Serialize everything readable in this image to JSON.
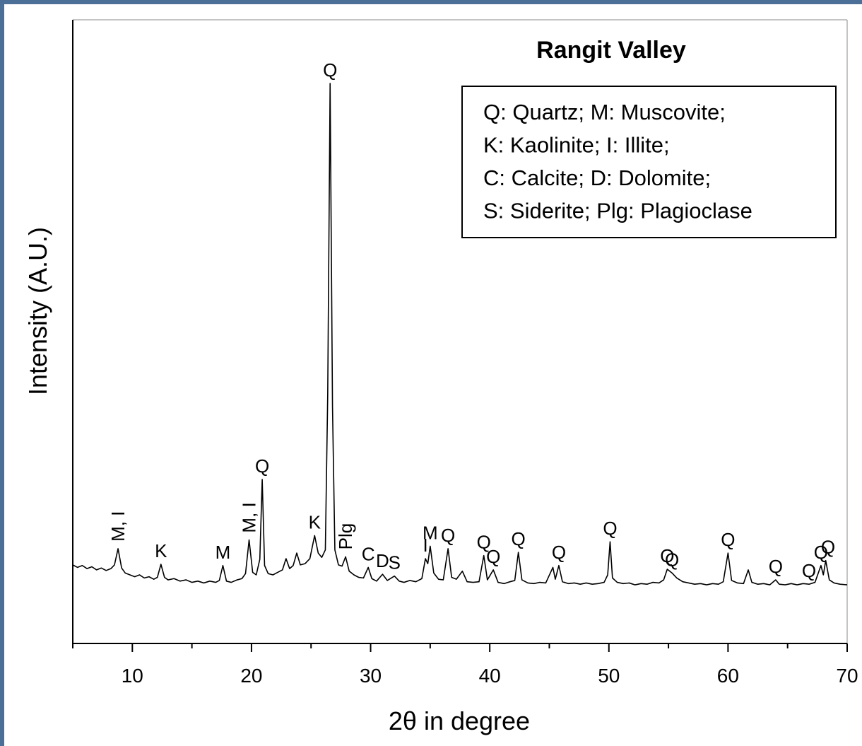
{
  "chart_data": {
    "type": "line",
    "title": "Rangit Valley",
    "x_label": "2θ in degree",
    "y_label": "Intensity (A.U.)",
    "xlim": [
      5,
      70
    ],
    "ylim": [
      0,
      100
    ],
    "xticks": [
      10,
      20,
      30,
      40,
      50,
      60,
      70
    ],
    "xminor_ticks": [
      5,
      15,
      25,
      35,
      45,
      55,
      65
    ],
    "legend_text": [
      "Q: Quartz; M: Muscovite;",
      "K: Kaolinite; I: Illite;",
      "C: Calcite; D: Dolomite;",
      "S: Siderite; Plg: Plagioclase"
    ],
    "x": [
      5.0,
      5.4,
      5.8,
      6.2,
      6.6,
      7.0,
      7.4,
      7.8,
      8.2,
      8.5,
      8.8,
      9.1,
      9.4,
      9.8,
      10.2,
      10.6,
      11.0,
      11.4,
      11.8,
      12.1,
      12.4,
      12.7,
      13.0,
      13.5,
      14.0,
      14.5,
      15.0,
      15.5,
      16.0,
      16.5,
      17.0,
      17.3,
      17.6,
      17.9,
      18.3,
      18.8,
      19.2,
      19.5,
      19.8,
      20.1,
      20.4,
      20.7,
      20.9,
      21.1,
      21.4,
      21.8,
      22.2,
      22.6,
      22.9,
      23.2,
      23.5,
      23.8,
      24.1,
      24.5,
      24.9,
      25.3,
      25.6,
      25.9,
      26.2,
      26.4,
      26.6,
      26.8,
      27.0,
      27.3,
      27.6,
      27.9,
      28.2,
      28.6,
      29.0,
      29.4,
      29.8,
      30.1,
      30.5,
      31.0,
      31.4,
      32.0,
      32.4,
      32.8,
      33.3,
      33.8,
      34.3,
      34.6,
      34.8,
      35.0,
      35.3,
      35.7,
      36.1,
      36.5,
      36.8,
      37.2,
      37.7,
      38.1,
      38.6,
      39.1,
      39.5,
      39.8,
      40.3,
      40.7,
      41.2,
      41.7,
      42.1,
      42.4,
      42.7,
      43.2,
      43.7,
      44.2,
      44.7,
      45.3,
      45.5,
      45.8,
      46.1,
      46.6,
      47.1,
      47.6,
      48.1,
      48.6,
      49.1,
      49.6,
      49.9,
      50.1,
      50.3,
      50.7,
      51.2,
      51.7,
      52.2,
      52.7,
      53.2,
      53.7,
      54.2,
      54.6,
      54.9,
      55.3,
      55.7,
      56.2,
      56.7,
      57.2,
      57.7,
      58.2,
      58.7,
      59.2,
      59.6,
      60.0,
      60.3,
      60.8,
      61.3,
      61.7,
      62.0,
      62.5,
      63.0,
      63.5,
      64.0,
      64.3,
      64.8,
      65.3,
      65.8,
      66.3,
      66.8,
      67.3,
      67.8,
      68.0,
      68.2,
      68.5,
      68.9,
      69.4,
      70.0
    ],
    "series": [
      {
        "color": "#000000",
        "values": [
          12.6,
          12.2,
          12.5,
          12.0,
          12.3,
          11.8,
          12.1,
          11.7,
          12.0,
          12.6,
          15.2,
          12.1,
          11.3,
          11.0,
          10.7,
          11.0,
          10.5,
          10.7,
          10.3,
          10.6,
          12.7,
          10.6,
          10.2,
          10.4,
          10.0,
          10.2,
          9.8,
          10.0,
          9.7,
          10.0,
          9.8,
          10.1,
          12.5,
          10.0,
          9.8,
          10.2,
          10.4,
          11.2,
          16.6,
          11.4,
          11.0,
          13.5,
          26.3,
          12.5,
          11.2,
          11.0,
          11.4,
          11.8,
          13.6,
          12.0,
          12.5,
          14.5,
          12.6,
          12.8,
          13.6,
          17.3,
          14.5,
          13.8,
          15.0,
          40.0,
          89.8,
          38.0,
          15.0,
          12.6,
          12.4,
          13.9,
          11.6,
          11.0,
          10.6,
          10.5,
          12.2,
          10.4,
          10.0,
          11.1,
          10.1,
          10.8,
          10.0,
          9.8,
          10.1,
          9.9,
          10.4,
          13.6,
          12.8,
          15.6,
          11.3,
          10.3,
          10.2,
          15.2,
          10.6,
          10.3,
          11.6,
          9.9,
          9.8,
          9.9,
          14.1,
          10.2,
          11.8,
          9.8,
          9.6,
          9.9,
          10.1,
          14.6,
          10.2,
          9.7,
          9.6,
          9.8,
          9.7,
          12.2,
          10.3,
          12.5,
          9.9,
          9.6,
          9.7,
          9.5,
          9.7,
          9.5,
          9.6,
          9.8,
          11.0,
          16.3,
          10.5,
          9.8,
          9.6,
          9.7,
          9.4,
          9.6,
          9.5,
          9.8,
          9.7,
          10.2,
          11.9,
          11.3,
          10.5,
          9.9,
          9.7,
          9.5,
          9.6,
          9.4,
          9.6,
          9.5,
          9.9,
          14.5,
          10.1,
          9.7,
          9.6,
          11.8,
          9.8,
          9.5,
          9.6,
          9.4,
          10.2,
          9.5,
          9.4,
          9.6,
          9.4,
          9.6,
          9.5,
          9.8,
          12.5,
          11.0,
          13.3,
          10.2,
          9.7,
          9.5,
          9.4
        ]
      }
    ],
    "annotations": [
      {
        "text": "M, I",
        "x": 8.8,
        "orientation": "vertical"
      },
      {
        "text": "K",
        "x": 12.4
      },
      {
        "text": "M",
        "x": 17.6
      },
      {
        "text": "M, I",
        "x": 19.8,
        "orientation": "vertical"
      },
      {
        "text": "Q",
        "x": 20.9
      },
      {
        "text": "K",
        "x": 25.3
      },
      {
        "text": "Q",
        "x": 26.6
      },
      {
        "text": "Plg",
        "x": 27.9,
        "orientation": "vertical"
      },
      {
        "text": "C",
        "x": 29.8
      },
      {
        "text": "D",
        "x": 31.0
      },
      {
        "text": "S",
        "x": 32.0
      },
      {
        "text": "I",
        "x": 34.6
      },
      {
        "text": "M",
        "x": 35.0
      },
      {
        "text": "Q",
        "x": 36.5
      },
      {
        "text": "Q",
        "x": 39.5
      },
      {
        "text": "Q",
        "x": 40.3
      },
      {
        "text": "Q",
        "x": 42.4
      },
      {
        "text": "Q",
        "x": 45.8
      },
      {
        "text": "Q",
        "x": 50.1
      },
      {
        "text": "Q",
        "x": 54.9
      },
      {
        "text": "Q",
        "x": 55.3
      },
      {
        "text": "Q",
        "x": 60.0
      },
      {
        "text": "Q",
        "x": 64.0
      },
      {
        "text": "Q",
        "x": 66.8
      },
      {
        "text": "Q",
        "x": 67.8
      },
      {
        "text": "Q",
        "x": 68.4
      }
    ]
  }
}
